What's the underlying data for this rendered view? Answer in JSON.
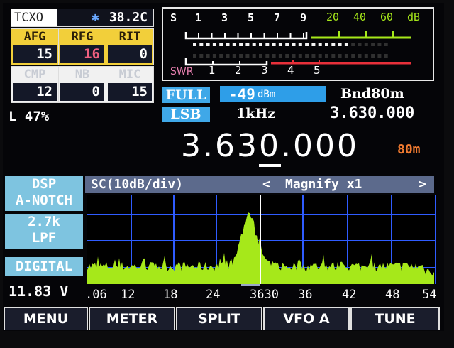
{
  "tcxo": {
    "label": "TCXO",
    "icon": "asterisk-icon",
    "temp": "38.2C"
  },
  "controls_top": [
    {
      "label": "AFG",
      "value": "15",
      "value_color": "#ffffff"
    },
    {
      "label": "RFG",
      "value": "16",
      "value_color": "#f06080"
    },
    {
      "label": "RIT",
      "value": "0",
      "value_color": "#ffffff"
    }
  ],
  "controls_bottom": [
    {
      "label": "CMP",
      "value": "12"
    },
    {
      "label": "NB",
      "value": "0"
    },
    {
      "label": "MIC",
      "value": "15"
    }
  ],
  "level": "L 47%",
  "smeter": {
    "s_label": "S",
    "s_ticks": [
      "1",
      "3",
      "5",
      "7",
      "9"
    ],
    "db_ticks": [
      "20",
      "40",
      "60",
      "dB"
    ],
    "swr_label": "SWR",
    "swr_ticks": [
      "1",
      "2",
      "3",
      "4",
      "5"
    ],
    "segments_total": 30,
    "segments_lit": 24
  },
  "agc": "FULL",
  "dbm_value": "-49",
  "dbm_unit": "dBm",
  "band_label": "Bnd80m",
  "mode": "LSB",
  "step": "1kHz",
  "freq_small": "3.630.000",
  "freq_main": {
    "part1": "3.63",
    "underlined": "0",
    "part2": ".000"
  },
  "band": "80m",
  "left_panel": {
    "dsp": "DSP",
    "dsp_mode": "A-NOTCH",
    "filter": "2.7k",
    "filter_type": "LPF",
    "digital": "DIGITAL",
    "voltage": "11.83 V"
  },
  "spectrum": {
    "title": "SC(10dB/div)",
    "magnify_prev": "<",
    "magnify": "Magnify x1",
    "magnify_next": ">",
    "freq_labels": [
      ".06",
      "12",
      "18",
      "24",
      "3630",
      "36",
      "42",
      "48",
      "54"
    ],
    "trace_color": "#a6e81a",
    "grid_color": "#2f5cff"
  },
  "buttons": [
    "MENU",
    "METER",
    "SPLIT",
    "VFO A",
    "TUNE"
  ],
  "colors": {
    "yellow": "#f2cf3a",
    "blue": "#3fa8e8",
    "green": "#a6e81a",
    "red": "#e8303a",
    "orange": "#f07a30"
  }
}
